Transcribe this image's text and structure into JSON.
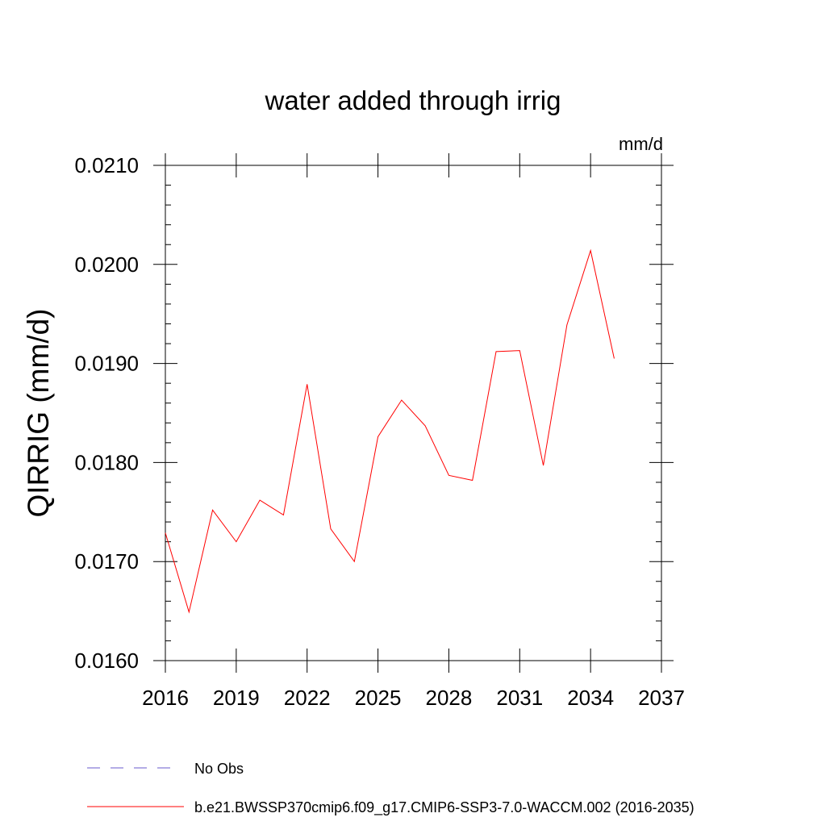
{
  "chart_data": {
    "type": "line",
    "title": "water added through irrig",
    "units": "mm/d",
    "xlabel": "",
    "ylabel": "QIRRIG  (mm/d)",
    "xlim": [
      2016,
      2037
    ],
    "ylim": [
      0.016,
      0.021
    ],
    "x_ticks": [
      2016,
      2019,
      2022,
      2025,
      2028,
      2031,
      2034,
      2037
    ],
    "x_tick_labels": [
      "2016",
      "2019",
      "2022",
      "2025",
      "2028",
      "2031",
      "2034",
      "2037"
    ],
    "y_ticks": [
      0.016,
      0.017,
      0.018,
      0.019,
      0.02,
      0.021
    ],
    "y_tick_labels": [
      "0.0160",
      "0.0170",
      "0.0180",
      "0.0190",
      "0.0200",
      "0.0210"
    ],
    "grid": false,
    "legend_position": "bottom-left",
    "series": [
      {
        "name": "No Obs",
        "style": "dashed",
        "color": "#6a5acd",
        "x": [],
        "values": []
      },
      {
        "name": "b.e21.BWSSP370cmip6.f09_g17.CMIP6-SSP3-7.0-WACCM.002 (2016-2035)",
        "style": "solid",
        "color": "#ff0000",
        "x": [
          2016,
          2017,
          2018,
          2019,
          2020,
          2021,
          2022,
          2023,
          2024,
          2025,
          2026,
          2027,
          2028,
          2029,
          2030,
          2031,
          2032,
          2033,
          2034,
          2035
        ],
        "values": [
          0.01729,
          0.01649,
          0.01752,
          0.0172,
          0.01762,
          0.01747,
          0.01879,
          0.01733,
          0.017,
          0.01826,
          0.01863,
          0.01837,
          0.01787,
          0.01782,
          0.01912,
          0.01913,
          0.01797,
          0.01939,
          0.02014,
          0.01905
        ]
      }
    ]
  }
}
